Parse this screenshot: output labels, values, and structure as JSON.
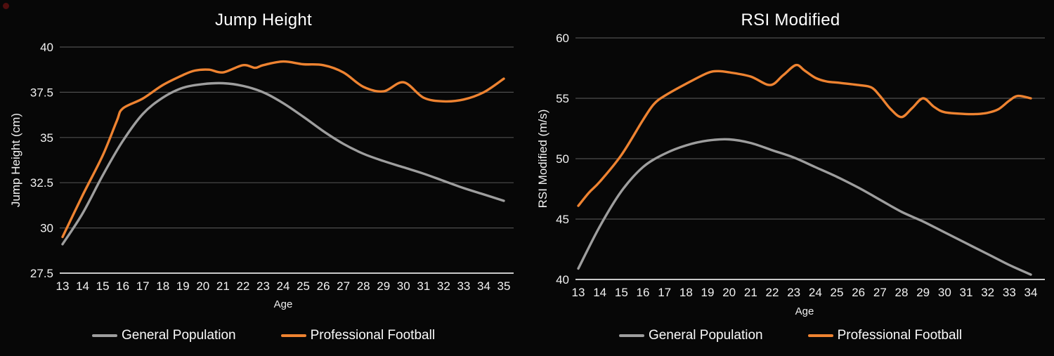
{
  "page": {
    "background": "#070707"
  },
  "legend": {
    "general": "General Population",
    "football": "Professional Football"
  },
  "colors": {
    "general_line": "#9e9e9e",
    "football_line": "#ee8331",
    "gridline": "#4e4e4e",
    "axis_line": "#c9c9c9",
    "text": "#ffffff"
  },
  "chart_data": [
    {
      "type": "line",
      "title": "Jump Height",
      "xlabel": "Age",
      "ylabel": "Jump Height (cm)",
      "xlim": [
        13,
        35
      ],
      "ylim": [
        27.5,
        40.5
      ],
      "x_ticks": [
        13,
        14,
        15,
        16,
        17,
        18,
        19,
        20,
        21,
        22,
        23,
        24,
        25,
        26,
        27,
        28,
        29,
        30,
        31,
        32,
        33,
        34,
        35
      ],
      "y_ticks": [
        40,
        37.5,
        35,
        32.5,
        30,
        27.5
      ],
      "grid": "horizontal",
      "legend_position": "bottom",
      "series": [
        {
          "name": "General Population",
          "color": "#9e9e9e",
          "x": [
            13,
            14,
            15,
            16,
            17,
            18,
            19,
            20,
            21,
            22,
            23,
            24,
            25,
            26,
            27,
            28,
            29,
            30,
            31,
            32,
            33,
            34,
            35
          ],
          "y": [
            29.1,
            30.8,
            32.9,
            34.8,
            36.3,
            37.2,
            37.75,
            37.95,
            38.0,
            37.85,
            37.5,
            36.9,
            36.15,
            35.35,
            34.65,
            34.1,
            33.7,
            33.35,
            33.0,
            32.6,
            32.2,
            31.85,
            31.5
          ]
        },
        {
          "name": "Professional Football",
          "color": "#ee8331",
          "x": [
            13,
            14,
            15,
            15.7,
            16,
            17,
            18,
            19,
            19.6,
            20.3,
            21,
            22,
            22.6,
            23,
            24,
            25,
            26,
            27,
            28,
            29,
            30,
            31,
            32,
            33,
            34,
            35
          ],
          "y": [
            29.5,
            31.8,
            34.0,
            35.9,
            36.6,
            37.15,
            37.9,
            38.45,
            38.7,
            38.75,
            38.6,
            39.0,
            38.85,
            39.0,
            39.2,
            39.05,
            39.0,
            38.6,
            37.8,
            37.55,
            38.05,
            37.2,
            37.0,
            37.1,
            37.5,
            38.25
          ]
        }
      ]
    },
    {
      "type": "line",
      "title": "RSI Modified",
      "xlabel": "Age",
      "ylabel": "RSI Modified (m/s)",
      "xlim": [
        13,
        34
      ],
      "ylim": [
        40,
        60
      ],
      "x_ticks": [
        13,
        14,
        15,
        16,
        17,
        18,
        19,
        20,
        21,
        22,
        23,
        24,
        25,
        26,
        27,
        28,
        29,
        30,
        31,
        32,
        33,
        34
      ],
      "y_ticks": [
        60,
        55,
        50,
        45,
        40
      ],
      "grid": "horizontal",
      "legend_position": "bottom",
      "series": [
        {
          "name": "General Population",
          "color": "#9e9e9e",
          "x": [
            13,
            14,
            15,
            16,
            17,
            18,
            19,
            20,
            21,
            22,
            23,
            24,
            25,
            26,
            27,
            28,
            29,
            30,
            31,
            32,
            33,
            34
          ],
          "y": [
            40.9,
            44.4,
            47.3,
            49.3,
            50.4,
            51.1,
            51.5,
            51.6,
            51.3,
            50.7,
            50.1,
            49.3,
            48.5,
            47.6,
            46.6,
            45.6,
            44.8,
            43.9,
            43.0,
            42.1,
            41.2,
            40.4
          ]
        },
        {
          "name": "Professional Football",
          "color": "#ee8331",
          "x": [
            13,
            13.5,
            14,
            15,
            16,
            16.5,
            17,
            18,
            19,
            19.5,
            20,
            21,
            21.9,
            22.5,
            23.1,
            23.5,
            24,
            24.5,
            25,
            26,
            26.6,
            27,
            27.5,
            28,
            28.5,
            29,
            29.5,
            30,
            31,
            31.5,
            32,
            32.5,
            33,
            33.4,
            34
          ],
          "y": [
            46.1,
            47.2,
            48.1,
            50.3,
            53.2,
            54.5,
            55.2,
            56.2,
            57.1,
            57.25,
            57.15,
            56.8,
            56.1,
            56.9,
            57.75,
            57.3,
            56.7,
            56.4,
            56.3,
            56.1,
            55.9,
            55.2,
            54.1,
            53.45,
            54.2,
            55.0,
            54.3,
            53.85,
            53.7,
            53.7,
            53.8,
            54.1,
            54.8,
            55.2,
            55.0
          ]
        }
      ]
    }
  ]
}
